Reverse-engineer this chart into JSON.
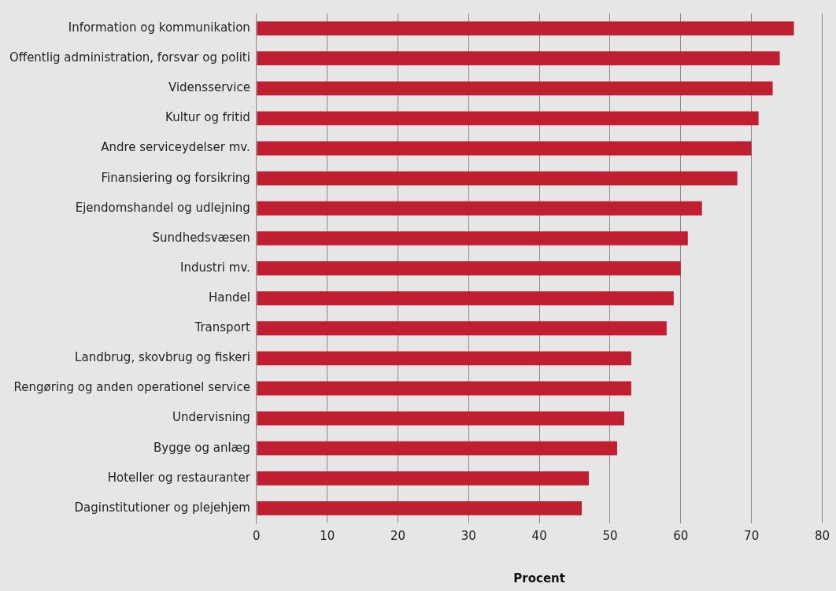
{
  "chart_data": {
    "type": "bar",
    "orientation": "horizontal",
    "xlabel": "Procent",
    "categories": [
      "Information og kommunikation",
      "Offentlig administration, forsvar og politi",
      "Vidensservice",
      "Kultur og fritid",
      "Andre serviceydelser mv.",
      "Finansiering og forsikring",
      "Ejendomshandel og udlejning",
      "Sundhedsvæsen",
      "Industri mv.",
      "Handel",
      "Transport",
      "Landbrug, skovbrug og fiskeri",
      "Rengøring og anden operationel service",
      "Undervisning",
      "Bygge og anlæg",
      "Hoteller og restauranter",
      "Daginstitutioner og plejehjem"
    ],
    "values": [
      76,
      74,
      73,
      71,
      70,
      68,
      63,
      61,
      60,
      59,
      58,
      53,
      53,
      52,
      51,
      47,
      46
    ],
    "color": "#c01f32",
    "xlim": [
      0,
      80
    ],
    "xticks": [
      0,
      10,
      20,
      30,
      40,
      50,
      60,
      70,
      80
    ],
    "grid": "x",
    "legend": false
  }
}
